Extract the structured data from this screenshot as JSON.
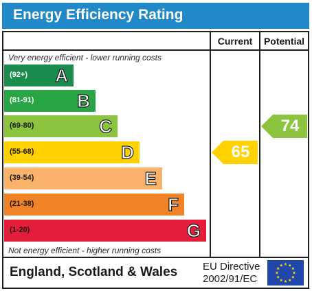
{
  "title": "Energy Efficiency Rating",
  "columns": {
    "current": "Current",
    "potential": "Potential"
  },
  "notes": {
    "top": "Very energy efficient - lower running costs",
    "bottom": "Not energy efficient - higher running costs"
  },
  "footer": {
    "region": "England, Scotland & Wales",
    "directive_line1": "EU Directive",
    "directive_line2": "2002/91/EC"
  },
  "colors": {
    "header": "#2189c8",
    "A": "#1c8b4e",
    "B": "#2aa546",
    "C": "#8cc43f",
    "D": "#ffd200",
    "E": "#fbb26a",
    "F": "#f08227",
    "G": "#e41e3a",
    "eu_flag": "#1f46a8",
    "eu_stars": "#ffdd00"
  },
  "chart_data": {
    "type": "bar",
    "title": "Energy Efficiency Rating",
    "bands": [
      {
        "letter": "A",
        "range": "(92+)",
        "range_color": "#ffffff"
      },
      {
        "letter": "B",
        "range": "(81-91)",
        "range_color": "#ffffff"
      },
      {
        "letter": "C",
        "range": "(69-80)",
        "range_color": "#1a1a1a"
      },
      {
        "letter": "D",
        "range": "(55-68)",
        "range_color": "#1a1a1a"
      },
      {
        "letter": "E",
        "range": "(39-54)",
        "range_color": "#1a1a1a"
      },
      {
        "letter": "F",
        "range": "(21-38)",
        "range_color": "#1a1a1a"
      },
      {
        "letter": "G",
        "range": "(1-20)",
        "range_color": "#1a1a1a"
      }
    ],
    "current": {
      "value": 65,
      "band": "D"
    },
    "potential": {
      "value": 74,
      "band": "C"
    }
  }
}
